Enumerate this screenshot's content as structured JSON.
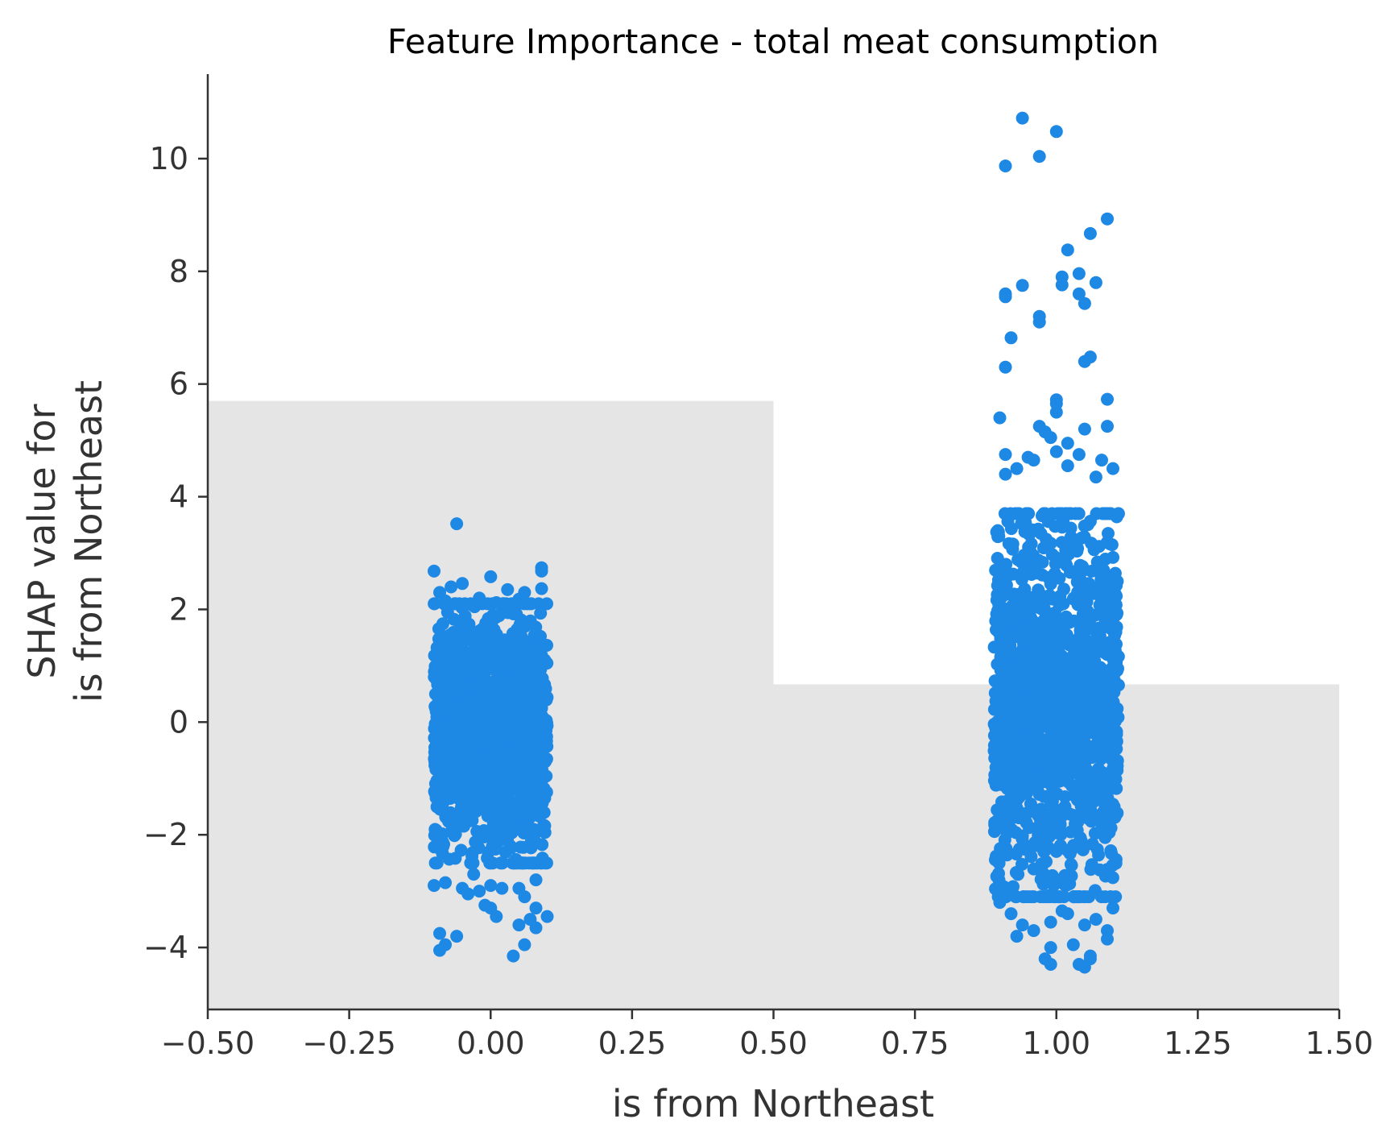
{
  "chart_data": {
    "type": "scatter",
    "title": "Feature Importance - total meat consumption",
    "xlabel": "is from Northeast",
    "ylabel": [
      "SHAP value for",
      "is from Northeast"
    ],
    "xlim": [
      -0.5,
      1.5
    ],
    "ylim": [
      -5.1,
      11.5
    ],
    "xticks": [
      -0.5,
      -0.25,
      0.0,
      0.25,
      0.5,
      0.75,
      1.0,
      1.25,
      1.5
    ],
    "xtick_labels": [
      "−0.50",
      "−0.25",
      "0.00",
      "0.25",
      "0.50",
      "0.75",
      "1.00",
      "1.25",
      "1.50"
    ],
    "yticks": [
      -4,
      -2,
      0,
      2,
      4,
      6,
      8,
      10
    ],
    "ytick_labels": [
      "−4",
      "−2",
      "0",
      "2",
      "4",
      "6",
      "8",
      "10"
    ],
    "grid": false,
    "point_color": "#1e88e5",
    "background_histogram": {
      "color": "#e5e5e5",
      "bins": [
        {
          "x0": -0.5,
          "x1": 0.5,
          "height": 5.7
        },
        {
          "x0": 0.5,
          "x1": 1.5,
          "height": 0.67
        }
      ]
    },
    "series": [
      {
        "x_center": 0.0,
        "jitter": 0.1,
        "dense_range": [
          -2.2,
          1.8
        ],
        "outliers": [
          [
            -0.06,
            3.52
          ],
          [
            -0.1,
            2.68
          ],
          [
            0.0,
            2.58
          ],
          [
            0.09,
            2.74
          ],
          [
            0.09,
            2.68
          ],
          [
            0.09,
            2.37
          ],
          [
            -0.07,
            2.4
          ],
          [
            -0.05,
            2.46
          ],
          [
            0.03,
            2.35
          ],
          [
            -0.09,
            2.3
          ],
          [
            0.06,
            2.3
          ],
          [
            -0.02,
            2.2
          ],
          [
            0.05,
            2.18
          ],
          [
            -0.08,
            2.15
          ],
          [
            0.01,
            2.12
          ],
          [
            -0.1,
            -2.9
          ],
          [
            -0.08,
            -2.85
          ],
          [
            -0.05,
            -2.95
          ],
          [
            -0.04,
            -3.05
          ],
          [
            0.0,
            -2.9
          ],
          [
            -0.02,
            -3.0
          ],
          [
            0.05,
            -2.95
          ],
          [
            0.06,
            -3.1
          ],
          [
            0.08,
            -2.8
          ],
          [
            0.02,
            -2.95
          ],
          [
            -0.01,
            -3.25
          ],
          [
            0.0,
            -3.3
          ],
          [
            0.01,
            -3.45
          ],
          [
            0.08,
            -3.3
          ],
          [
            0.07,
            -3.5
          ],
          [
            0.1,
            -3.45
          ],
          [
            0.05,
            -3.6
          ],
          [
            0.08,
            -3.65
          ],
          [
            -0.09,
            -3.75
          ],
          [
            -0.06,
            -3.8
          ],
          [
            -0.08,
            -3.95
          ],
          [
            -0.09,
            -4.05
          ],
          [
            0.06,
            -3.95
          ],
          [
            0.04,
            -4.15
          ],
          [
            -0.03,
            -2.7
          ]
        ]
      },
      {
        "x_center": 1.0,
        "jitter": 0.11,
        "dense_range": [
          -2.8,
          3.4
        ],
        "outliers": [
          [
            0.94,
            10.72
          ],
          [
            1.0,
            10.48
          ],
          [
            0.91,
            9.87
          ],
          [
            0.97,
            10.04
          ],
          [
            1.09,
            8.93
          ],
          [
            1.06,
            8.67
          ],
          [
            1.02,
            8.38
          ],
          [
            0.94,
            7.75
          ],
          [
            1.01,
            7.9
          ],
          [
            1.04,
            7.96
          ],
          [
            1.07,
            7.8
          ],
          [
            1.01,
            7.76
          ],
          [
            0.91,
            7.6
          ],
          [
            0.91,
            7.55
          ],
          [
            1.04,
            7.6
          ],
          [
            1.05,
            7.43
          ],
          [
            0.97,
            7.2
          ],
          [
            0.97,
            7.1
          ],
          [
            0.92,
            6.82
          ],
          [
            1.06,
            6.48
          ],
          [
            1.05,
            6.4
          ],
          [
            0.91,
            6.3
          ],
          [
            1.0,
            5.72
          ],
          [
            1.09,
            5.73
          ],
          [
            1.0,
            5.65
          ],
          [
            0.9,
            5.4
          ],
          [
            1.0,
            5.5
          ],
          [
            0.97,
            5.25
          ],
          [
            1.09,
            5.25
          ],
          [
            1.05,
            5.2
          ],
          [
            0.98,
            5.15
          ],
          [
            0.99,
            5.05
          ],
          [
            1.02,
            4.95
          ],
          [
            1.0,
            4.8
          ],
          [
            1.04,
            4.75
          ],
          [
            0.91,
            4.75
          ],
          [
            0.95,
            4.7
          ],
          [
            0.96,
            4.65
          ],
          [
            1.08,
            4.65
          ],
          [
            1.02,
            4.55
          ],
          [
            1.1,
            4.5
          ],
          [
            0.93,
            4.5
          ],
          [
            0.91,
            4.4
          ],
          [
            1.07,
            4.35
          ],
          [
            0.9,
            -3.2
          ],
          [
            0.92,
            -3.4
          ],
          [
            0.94,
            -3.6
          ],
          [
            0.96,
            -3.7
          ],
          [
            0.99,
            -3.55
          ],
          [
            1.02,
            -3.4
          ],
          [
            1.05,
            -3.6
          ],
          [
            1.07,
            -3.5
          ],
          [
            1.09,
            -3.7
          ],
          [
            1.1,
            -3.3
          ],
          [
            1.09,
            -3.85
          ],
          [
            0.99,
            -4.0
          ],
          [
            1.03,
            -3.95
          ],
          [
            0.98,
            -4.2
          ],
          [
            0.99,
            -4.3
          ],
          [
            1.04,
            -4.3
          ],
          [
            1.05,
            -4.35
          ],
          [
            1.06,
            -4.2
          ],
          [
            1.06,
            -4.15
          ],
          [
            0.93,
            -3.8
          ],
          [
            1.01,
            -3.35
          ]
        ]
      }
    ]
  }
}
